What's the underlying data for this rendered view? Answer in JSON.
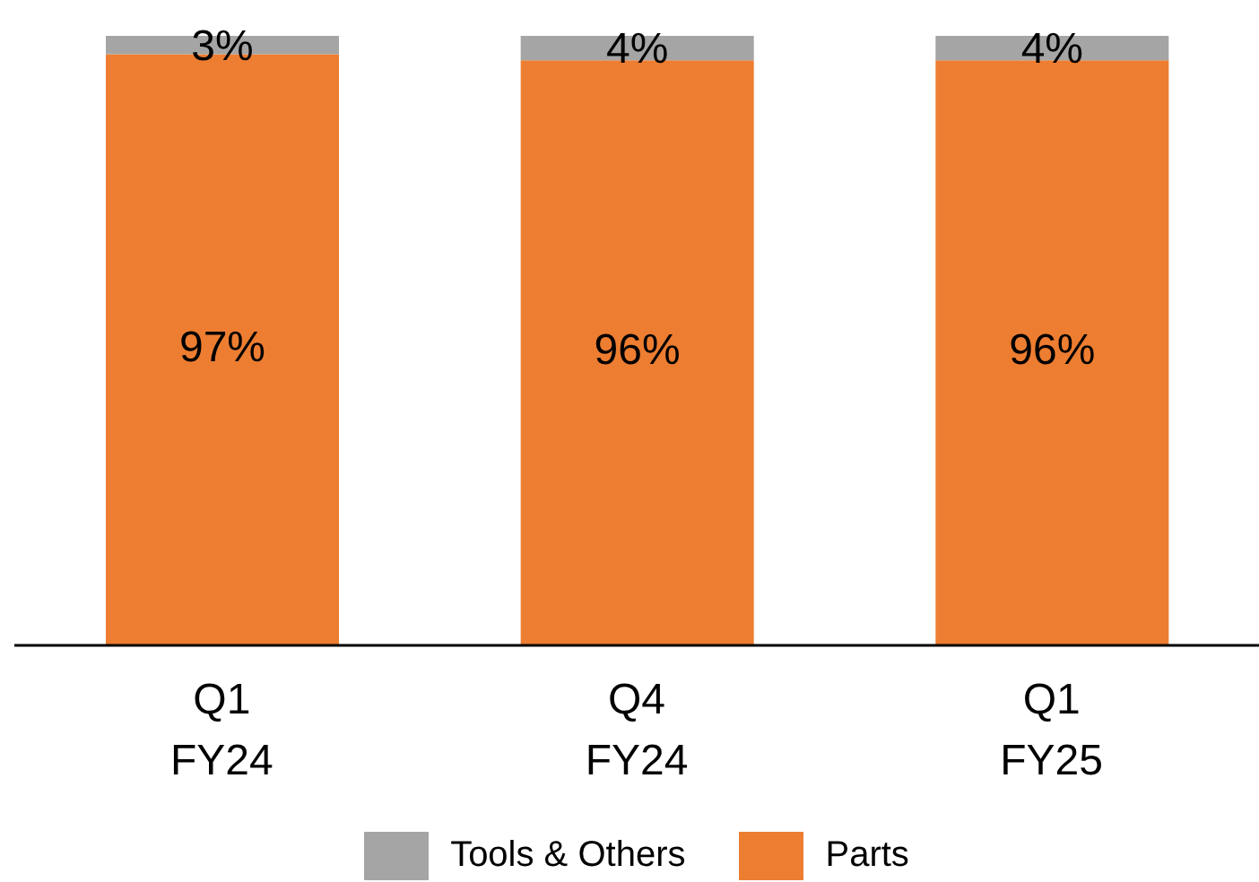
{
  "chart_data": {
    "type": "bar",
    "stacked": true,
    "categories": [
      "Q1\nFY24",
      "Q4\nFY24",
      "Q1\nFY25"
    ],
    "series": [
      {
        "name": "Parts",
        "color": "#ed7d31",
        "values": [
          97,
          96,
          96
        ],
        "value_labels": [
          "97%",
          "96%",
          "96%"
        ]
      },
      {
        "name": "Tools & Others",
        "color": "#a5a5a5",
        "values": [
          3,
          4,
          4
        ],
        "value_labels": [
          "3%",
          "4%",
          "4%"
        ]
      }
    ],
    "legend": "bottom"
  }
}
